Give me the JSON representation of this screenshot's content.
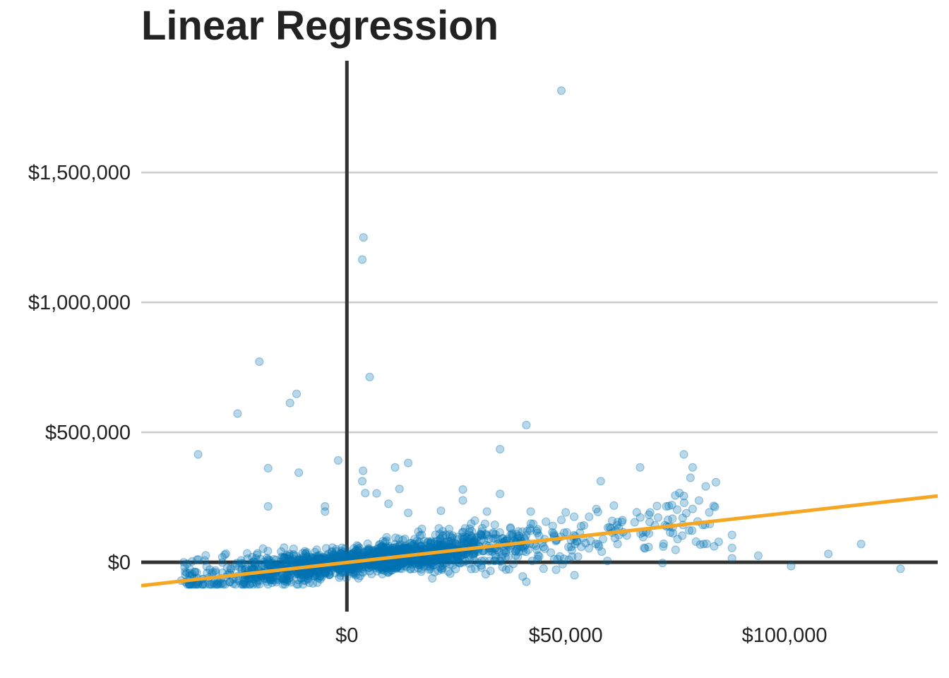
{
  "chart_data": {
    "type": "scatter",
    "title": "Linear Regression",
    "xlabel": "",
    "ylabel": "",
    "xlim": [
      -47000,
      135000
    ],
    "ylim": [
      -190000,
      1930000
    ],
    "x_ticks": [
      {
        "value": 0,
        "label": "$0"
      },
      {
        "value": 50000,
        "label": "$50,000"
      },
      {
        "value": 100000,
        "label": "$100,000"
      }
    ],
    "y_ticks": [
      {
        "value": 0,
        "label": "$0"
      },
      {
        "value": 500000,
        "label": "$500,000"
      },
      {
        "value": 1000000,
        "label": "$1,000,000"
      },
      {
        "value": 1500000,
        "label": "$1,500,000"
      }
    ],
    "grid": {
      "horizontal": true,
      "vertical": false
    },
    "legend": "none",
    "colors": {
      "points": "#0072b2",
      "regression_line": "#f5a623",
      "zero_axes": "#333333",
      "grid": "#cccccc"
    },
    "regression_line": {
      "x": [
        -47000,
        135000
      ],
      "y": [
        -90000,
        255000
      ]
    },
    "outliers": [
      {
        "x": 49000,
        "y": 1815000
      },
      {
        "x": 3800,
        "y": 1250000
      },
      {
        "x": 3500,
        "y": 1165000
      },
      {
        "x": -20000,
        "y": 772000
      },
      {
        "x": 5200,
        "y": 713000
      },
      {
        "x": -11500,
        "y": 648000
      },
      {
        "x": -13000,
        "y": 613000
      },
      {
        "x": -25000,
        "y": 572000
      },
      {
        "x": 41000,
        "y": 528000
      },
      {
        "x": 35000,
        "y": 435000
      },
      {
        "x": -34000,
        "y": 415000
      },
      {
        "x": -2000,
        "y": 392000
      },
      {
        "x": -18000,
        "y": 362000
      },
      {
        "x": -11000,
        "y": 345000
      },
      {
        "x": 3700,
        "y": 352000
      },
      {
        "x": 11000,
        "y": 365000
      },
      {
        "x": 14000,
        "y": 382000
      },
      {
        "x": 3500,
        "y": 312000
      },
      {
        "x": 4200,
        "y": 266000
      },
      {
        "x": 6800,
        "y": 265000
      },
      {
        "x": 12000,
        "y": 282000
      },
      {
        "x": 26500,
        "y": 280000
      },
      {
        "x": 26500,
        "y": 238000
      },
      {
        "x": 35000,
        "y": 263000
      },
      {
        "x": 58000,
        "y": 312000
      },
      {
        "x": 67000,
        "y": 365000
      },
      {
        "x": 77000,
        "y": 415000
      },
      {
        "x": 79000,
        "y": 365000
      },
      {
        "x": 78500,
        "y": 325000
      },
      {
        "x": 82000,
        "y": 292000
      },
      {
        "x": 77000,
        "y": 255000
      },
      {
        "x": 73000,
        "y": 215000
      },
      {
        "x": 69000,
        "y": 183000
      },
      {
        "x": 61000,
        "y": 218000
      },
      {
        "x": 57000,
        "y": 205000
      },
      {
        "x": 50000,
        "y": 192000
      },
      {
        "x": 42000,
        "y": 195000
      },
      {
        "x": 32000,
        "y": 195000
      },
      {
        "x": -18000,
        "y": 215000
      },
      {
        "x": -5000,
        "y": 215000
      },
      {
        "x": -5000,
        "y": 195000
      },
      {
        "x": 9500,
        "y": 225000
      },
      {
        "x": 14000,
        "y": 190000
      },
      {
        "x": 21500,
        "y": 198000
      },
      {
        "x": 88000,
        "y": 105000
      },
      {
        "x": 88000,
        "y": 55000
      },
      {
        "x": 88000,
        "y": 15000
      },
      {
        "x": 94000,
        "y": 25000
      },
      {
        "x": 101500,
        "y": -15000
      },
      {
        "x": 110000,
        "y": 32000
      },
      {
        "x": 117500,
        "y": 70000
      },
      {
        "x": 126500,
        "y": -25000
      },
      {
        "x": 41000,
        "y": -75000
      },
      {
        "x": 52000,
        "y": -50000
      },
      {
        "x": 19500,
        "y": -62000
      },
      {
        "x": -26000,
        "y": -82000
      }
    ],
    "cloud_summary": {
      "n": 1900,
      "x_center": 5000,
      "x_spread": 18000,
      "x_min": -38000,
      "x_max": 85000,
      "noise_sd": 32000
    }
  }
}
